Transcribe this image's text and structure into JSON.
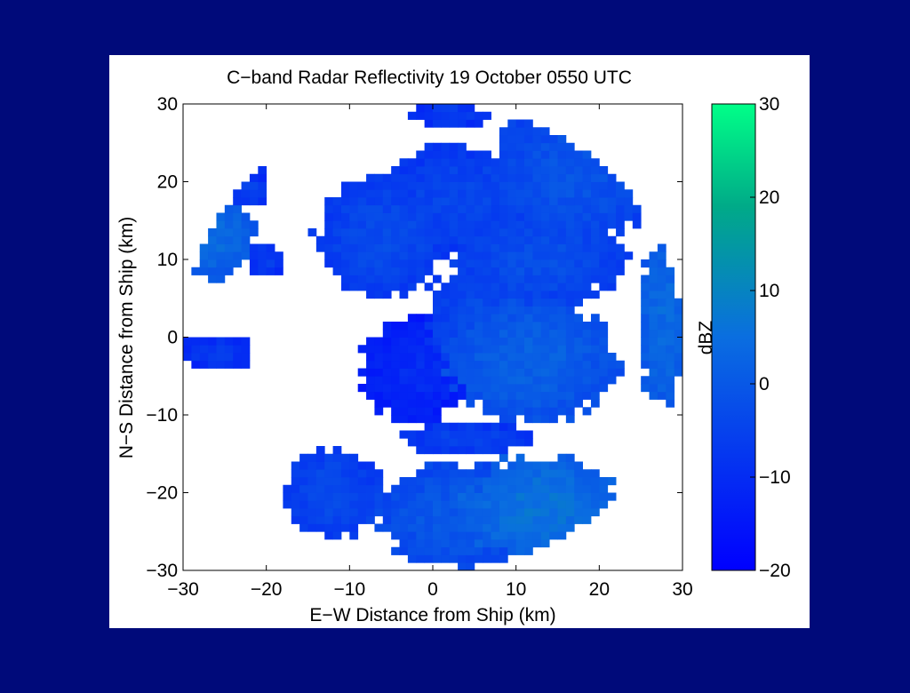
{
  "chart_data": {
    "type": "heatmap",
    "title": "C−band Radar Reflectivity 19 October 0550 UTC",
    "xlabel": "E−W Distance from Ship (km)",
    "ylabel": "N−S Distance from Ship (km)",
    "xlim": [
      -30,
      30
    ],
    "ylim": [
      -30,
      30
    ],
    "xticks": [
      "−30",
      "−20",
      "−10",
      "0",
      "10",
      "20",
      "30"
    ],
    "yticks": [
      "30",
      "20",
      "10",
      "0",
      "−10",
      "−20",
      "−30"
    ],
    "colorbar": {
      "label": "dBZ",
      "range": [
        -20,
        30
      ],
      "ticks": [
        "30",
        "20",
        "10",
        "0",
        "−10",
        "−20"
      ],
      "colormap": [
        "#0000ff",
        "#0a6ee0",
        "#00aa88",
        "#00ff88"
      ]
    },
    "cells": [
      {
        "x": -26,
        "y": 13,
        "rx": 4,
        "ry": 5,
        "dbz": 2
      },
      {
        "x": -22,
        "y": 19,
        "rx": 2,
        "ry": 2,
        "dbz": -7
      },
      {
        "x": -20,
        "y": 10,
        "rx": 2,
        "ry": 2,
        "dbz": -8
      },
      {
        "x": -21,
        "y": 22,
        "rx": 1,
        "ry": 1,
        "dbz": -8
      },
      {
        "x": -6,
        "y": 13,
        "rx": 7,
        "ry": 7,
        "dbz": -5
      },
      {
        "x": 3,
        "y": 18,
        "rx": 8,
        "ry": 6,
        "dbz": -6
      },
      {
        "x": 2,
        "y": 29,
        "rx": 4,
        "ry": 2,
        "dbz": -8
      },
      {
        "x": 17,
        "y": 21,
        "rx": 9,
        "ry": 8,
        "dbz": -3
      },
      {
        "x": 13,
        "y": 10,
        "rx": 9,
        "ry": 5,
        "dbz": -4
      },
      {
        "x": 6,
        "y": 2,
        "rx": 6,
        "ry": 7,
        "dbz": -5
      },
      {
        "x": 12,
        "y": -3,
        "rx": 9,
        "ry": 7,
        "dbz": 0
      },
      {
        "x": 28,
        "y": 2,
        "rx": 3,
        "ry": 10,
        "dbz": 2
      },
      {
        "x": -12,
        "y": -20,
        "rx": 5,
        "ry": 5,
        "dbz": -5
      },
      {
        "x": 3,
        "y": -23,
        "rx": 9,
        "ry": 6,
        "dbz": -2
      },
      {
        "x": 13,
        "y": -22,
        "rx": 8,
        "ry": 6,
        "dbz": 4
      },
      {
        "x": 4,
        "y": -13,
        "rx": 7,
        "ry": 2,
        "dbz": -7
      },
      {
        "x": -2,
        "y": -4,
        "rx": 6,
        "ry": 6,
        "dbz": -12
      },
      {
        "x": -26,
        "y": -2,
        "rx": 4,
        "ry": 2,
        "dbz": -9
      }
    ]
  }
}
